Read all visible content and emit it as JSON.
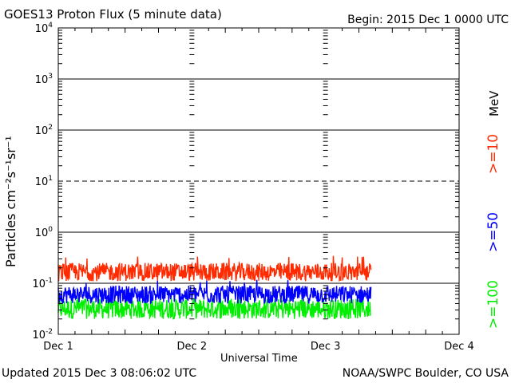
{
  "header": {
    "title": "GOES13 Proton Flux (5 minute data)",
    "begin": "Begin: 2015 Dec 1 0000 UTC"
  },
  "footer": {
    "updated": "Updated 2015 Dec  3 08:06:02 UTC",
    "credit": "NOAA/SWPC Boulder, CO USA"
  },
  "legend": {
    "unit": "MeV",
    "colors": {
      "ge10": "#ff2a00",
      "ge50": "#0000ff",
      "ge100": "#00ee00"
    }
  },
  "chart_data": {
    "type": "line",
    "title": "GOES13 Proton Flux (5 minute data)",
    "xlabel": "Universal Time",
    "ylabel": "Particles cm⁻²s⁻¹sr⁻¹",
    "yscale": "log",
    "ylim": [
      0.01,
      10000
    ],
    "xlim_days": [
      0,
      3
    ],
    "x_tick_labels": [
      "Dec 1",
      "Dec 2",
      "Dec 3",
      "Dec 4"
    ],
    "y_ticks": [
      {
        "base": "10",
        "exp": "-2",
        "value": 0.01
      },
      {
        "base": "10",
        "exp": "-1",
        "value": 0.1
      },
      {
        "base": "10",
        "exp": "0",
        "value": 1
      },
      {
        "base": "10",
        "exp": "1",
        "value": 10
      },
      {
        "base": "10",
        "exp": "2",
        "value": 100
      },
      {
        "base": "10",
        "exp": "3",
        "value": 1000
      },
      {
        "base": "10",
        "exp": "4",
        "value": 10000
      }
    ],
    "reference_lines": [
      {
        "value": 10,
        "style": "dashed"
      }
    ],
    "grid": "horizontal at decades",
    "data_end_day": 2.34,
    "series": [
      {
        "name": ">=10",
        "color": "#ff2a00",
        "typical_range": [
          0.11,
          0.25
        ],
        "peak": 0.35
      },
      {
        "name": ">=50",
        "color": "#0000ff",
        "typical_range": [
          0.04,
          0.09
        ],
        "peak": 0.12
      },
      {
        "name": ">=100",
        "color": "#00ee00",
        "typical_range": [
          0.02,
          0.05
        ],
        "peak": 0.055
      }
    ]
  }
}
